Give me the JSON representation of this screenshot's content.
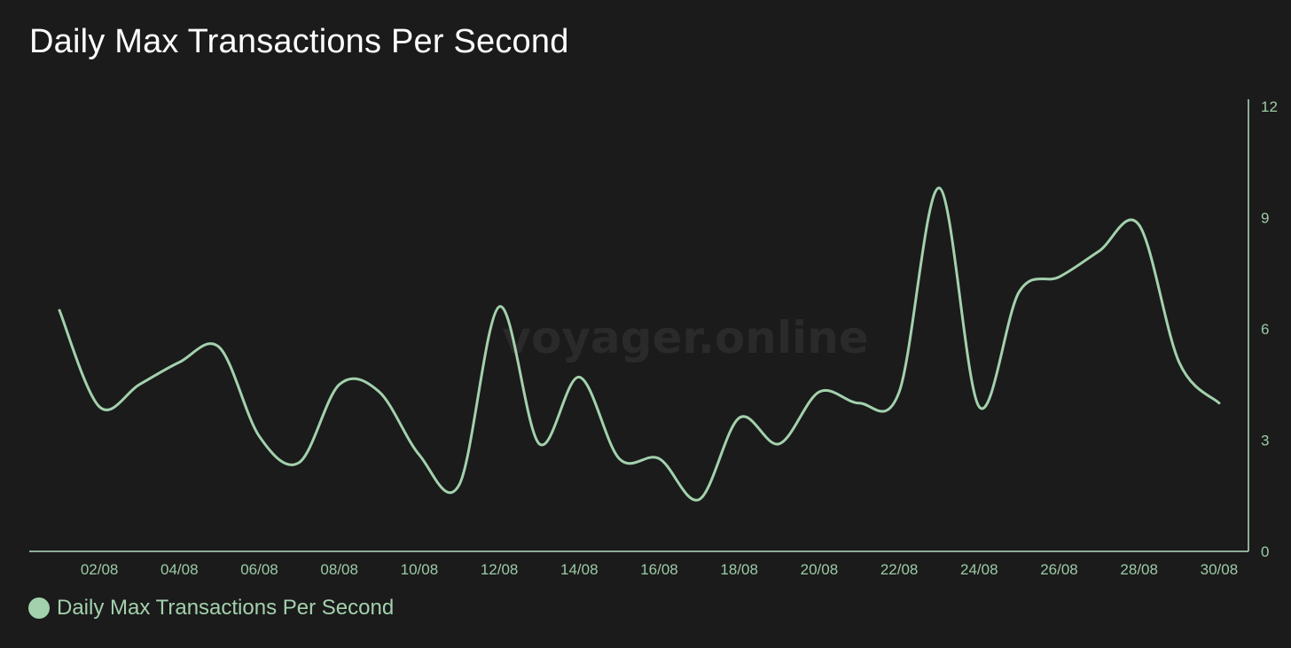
{
  "header": {
    "title": "Daily Max Transactions Per Second"
  },
  "watermark": "voyager.online",
  "colors": {
    "background": "#1b1b1b",
    "line": "#a3d1ad",
    "axis": "#b5dcbe",
    "tick_text": "#9ccaa6",
    "watermark": "#2a2a2a"
  },
  "chart_data": {
    "type": "line",
    "title": "Daily Max Transactions Per Second",
    "xlabel": "",
    "ylabel": "",
    "x": [
      "01/08",
      "02/08",
      "03/08",
      "04/08",
      "05/08",
      "06/08",
      "07/08",
      "08/08",
      "09/08",
      "10/08",
      "11/08",
      "12/08",
      "13/08",
      "14/08",
      "15/08",
      "16/08",
      "17/08",
      "18/08",
      "19/08",
      "20/08",
      "21/08",
      "22/08",
      "23/08",
      "24/08",
      "25/08",
      "26/08",
      "27/08",
      "28/08",
      "29/08",
      "30/08"
    ],
    "x_tick_labels": [
      "02/08",
      "04/08",
      "06/08",
      "08/08",
      "10/08",
      "12/08",
      "14/08",
      "16/08",
      "18/08",
      "20/08",
      "22/08",
      "24/08",
      "26/08",
      "28/08",
      "30/08"
    ],
    "series": [
      {
        "name": "Daily Max Transactions Per Second",
        "values": [
          6.5,
          3.9,
          4.5,
          5.1,
          5.5,
          3.1,
          2.4,
          4.5,
          4.3,
          2.6,
          1.8,
          6.6,
          2.9,
          4.7,
          2.5,
          2.5,
          1.4,
          3.6,
          2.9,
          4.3,
          4.0,
          4.3,
          9.8,
          3.9,
          7.0,
          7.4,
          8.1,
          8.8,
          5.1,
          4.0
        ]
      }
    ],
    "ylim": [
      0,
      12
    ],
    "y_ticks": [
      0,
      3,
      6,
      9,
      12
    ],
    "y_axis_side": "right",
    "grid": false,
    "legend_position": "bottom-left"
  }
}
